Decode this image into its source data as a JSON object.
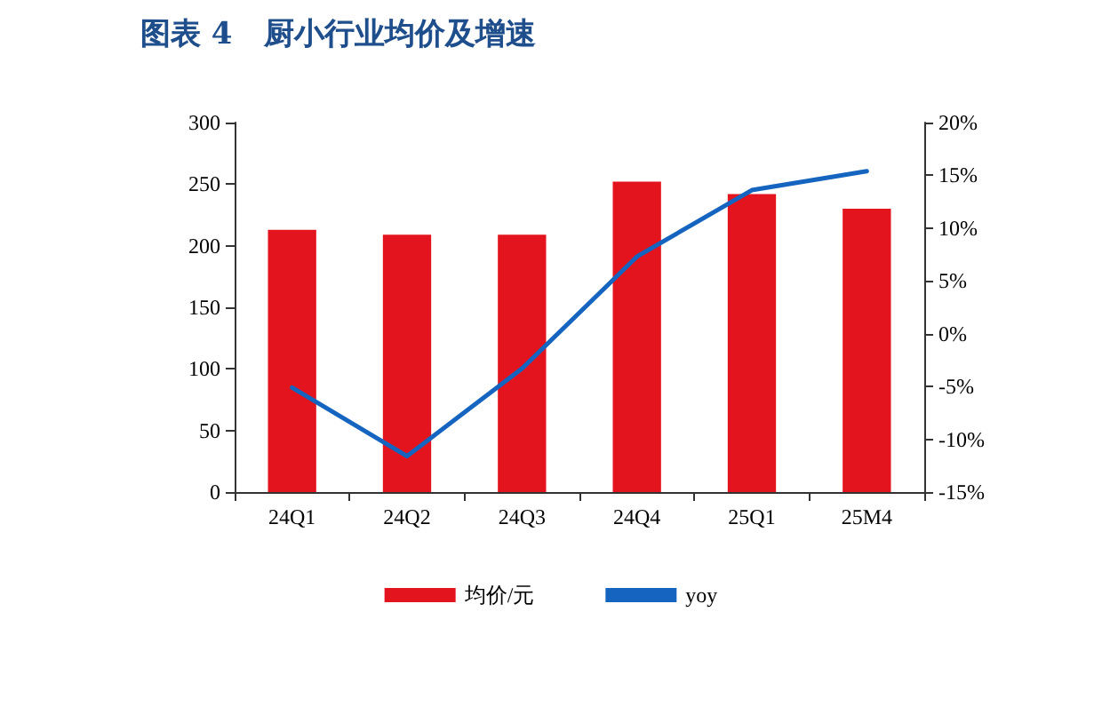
{
  "chart_data": {
    "type": "bar",
    "title": "图表 4   厨小行业均价及增速",
    "categories": [
      "24Q1",
      "24Q2",
      "24Q3",
      "24Q4",
      "25Q1",
      "25M4"
    ],
    "series": [
      {
        "name": "均价/元",
        "color": "#e3141d",
        "values": [
          213,
          209,
          209,
          252,
          242,
          230
        ]
      },
      {
        "name": "yoy",
        "type": "line",
        "axis": "y2",
        "color": "#1565c0",
        "values": [
          -5.1,
          -11.6,
          -3.3,
          7.3,
          13.6,
          15.4
        ]
      }
    ],
    "ylim": [
      0,
      300
    ],
    "yticks": [
      0,
      50,
      100,
      150,
      200,
      250,
      300
    ],
    "y2lim": [
      -15,
      20
    ],
    "y2ticks": [
      {
        "value": -15,
        "label": "-15%"
      },
      {
        "value": -10,
        "label": "-10%"
      },
      {
        "value": -5,
        "label": "-5%"
      },
      {
        "value": 0,
        "label": "0%"
      },
      {
        "value": 5,
        "label": "5%"
      },
      {
        "value": 10,
        "label": "10%"
      },
      {
        "value": 15,
        "label": "15%"
      },
      {
        "value": 20,
        "label": "20%"
      }
    ],
    "grid": false,
    "legend": "bottom",
    "marker": "none",
    "line_style": "solid"
  }
}
